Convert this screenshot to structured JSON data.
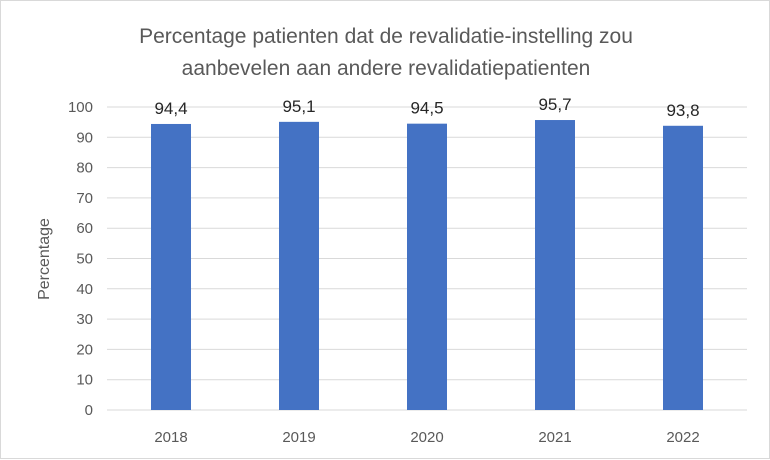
{
  "chart_data": {
    "type": "bar",
    "title": "Percentage patienten dat de revalidatie-instelling zou aanbevelen aan andere revalidatiepatienten",
    "title_lines": [
      "Percentage patienten dat de revalidatie-instelling zou",
      "aanbevelen aan andere revalidatiepatienten"
    ],
    "categories": [
      "2018",
      "2019",
      "2020",
      "2021",
      "2022"
    ],
    "values": [
      94.4,
      95.1,
      94.5,
      95.7,
      93.8
    ],
    "data_labels": [
      "94,4",
      "95,1",
      "94,5",
      "95,7",
      "93,8"
    ],
    "xlabel": "",
    "ylabel": "Percentage",
    "ylim": [
      0,
      100
    ],
    "yticks": [
      0,
      10,
      20,
      30,
      40,
      50,
      60,
      70,
      80,
      90,
      100
    ],
    "grid": true,
    "bar_color": "#4472c4",
    "grid_color": "#d9d9d9"
  }
}
